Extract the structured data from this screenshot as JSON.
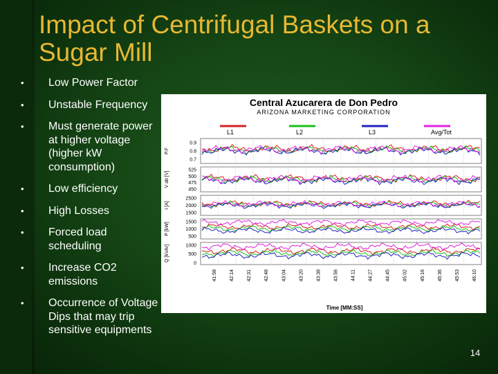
{
  "slide": {
    "title": "Impact of Centrifugal Baskets on a Sugar Mill",
    "bullets": [
      "Low Power Factor",
      "Unstable Frequency",
      "Must generate power at higher voltage (higher kW consumption)",
      "Low efficiency",
      "High Losses",
      "Forced load scheduling",
      "Increase CO2 emissions",
      "Occurrence of Voltage Dips that may trip sensitive equipments"
    ],
    "bullet_symbol": "•",
    "page_number": "14"
  },
  "chart_data": {
    "type": "line",
    "title": "Central Azucarera de Don Pedro",
    "subtitle": "ARIZONA MARKETING CORPORATION",
    "legend": [
      {
        "name": "L1",
        "color": "#d42020"
      },
      {
        "name": "L2",
        "color": "#18c018"
      },
      {
        "name": "L3",
        "color": "#2020c0"
      },
      {
        "name": "Avg/Tot",
        "color": "#e020e0"
      }
    ],
    "xlabel": "Time [MM:SS]",
    "x_ticks": [
      "41:58",
      "42:14",
      "42:31",
      "42:48",
      "43:04",
      "43:20",
      "43:38",
      "43:56",
      "44:11",
      "44:27",
      "44:45",
      "45:02",
      "45:16",
      "45:36",
      "45:53",
      "46:10"
    ],
    "panels": [
      {
        "ylabel": "P.F",
        "ticks": [
          "0.9",
          "0.8",
          "0.7"
        ],
        "range": [
          0.65,
          0.95
        ]
      },
      {
        "ylabel": "V ab [V]",
        "ticks": [
          "525",
          "500",
          "475",
          "450"
        ],
        "range": [
          440,
          535
        ]
      },
      {
        "ylabel": "I [A]",
        "ticks": [
          "2500",
          "2000",
          "1500"
        ],
        "range": [
          1300,
          2700
        ]
      },
      {
        "ylabel": "P [kW]",
        "ticks": [
          "1500",
          "1000",
          "500"
        ],
        "range": [
          300,
          1700
        ]
      },
      {
        "ylabel": "Q [kVAr]",
        "ticks": [
          "1000",
          "500",
          "0"
        ],
        "range": [
          -100,
          1150
        ]
      }
    ]
  }
}
